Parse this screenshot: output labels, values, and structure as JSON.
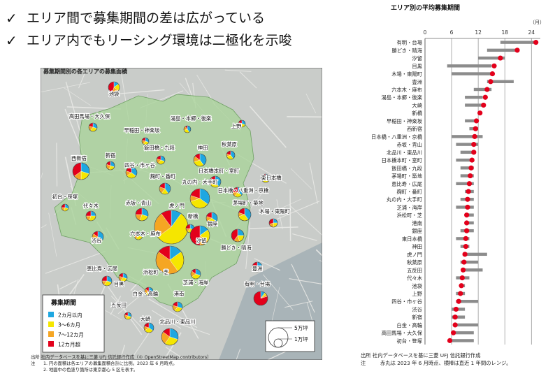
{
  "headlines": [
    {
      "mark": "✓",
      "text": "エリア間で募集期間の差は広がっている"
    },
    {
      "mark": "✓",
      "text": "エリア内でもリーシング環境は二極化を示唆"
    }
  ],
  "map": {
    "title": "募集期間別の各エリアの募集面積",
    "legend": {
      "title": "募集期間",
      "items": [
        {
          "label": "2カ月以内",
          "color": "#1ea7e1"
        },
        {
          "label": "3～6カ月",
          "color": "#f5e600"
        },
        {
          "label": "7～12カ月",
          "color": "#f5a623"
        },
        {
          "label": "12カ月超",
          "color": "#e3001b"
        }
      ]
    },
    "size_legend": {
      "large": "5万坪",
      "small": "1万坪"
    },
    "areas": [
      {
        "name": "池袋"
      },
      {
        "name": "高田馬場・大久保"
      },
      {
        "name": "湯島・本郷・後楽"
      },
      {
        "name": "早稲田・神楽坂"
      },
      {
        "name": "上野"
      },
      {
        "name": "飯田橋・九段"
      },
      {
        "name": "神田"
      },
      {
        "name": "秋葉原"
      },
      {
        "name": "西新宿"
      },
      {
        "name": "新宿"
      },
      {
        "name": "四谷・市ヶ谷"
      },
      {
        "name": "日本橋本町・室町"
      },
      {
        "name": "東日本橋"
      },
      {
        "name": "麹町・番町"
      },
      {
        "name": "丸の内・大手町"
      },
      {
        "name": "日本橋・八重洲・京橋"
      },
      {
        "name": "初台・笹塚"
      },
      {
        "name": "代々木"
      },
      {
        "name": "赤坂・青山"
      },
      {
        "name": "虎ノ門"
      },
      {
        "name": "茅場町・築地"
      },
      {
        "name": "木場・東陽町"
      },
      {
        "name": "新橋"
      },
      {
        "name": "銀座"
      },
      {
        "name": "六本木・麻布"
      },
      {
        "name": "汐留"
      },
      {
        "name": "渋谷"
      },
      {
        "name": "勝どき・晴海"
      },
      {
        "name": "恵比寿・広尾"
      },
      {
        "name": "浜松町・芝"
      },
      {
        "name": "豊洲"
      },
      {
        "name": "芝浦・海岸"
      },
      {
        "name": "目黒"
      },
      {
        "name": "有明・台場"
      },
      {
        "name": "白金・高輪"
      },
      {
        "name": "港南"
      },
      {
        "name": "五反田"
      },
      {
        "name": "大崎"
      },
      {
        "name": "北品川・東品川"
      }
    ],
    "source": "出所 社内データベースを基に三菱 UFJ 信託銀行作成（© OpenStreetMap contributors）",
    "notes": [
      {
        "label": "注",
        "text": "1. 円の面積は各エリアの募集面積合計に比例。2023 年 6 月時点。"
      },
      {
        "label": "",
        "text": "2. 地図中の色塗り箇所は東京都心 5 区を表す。"
      }
    ]
  },
  "chart_data": {
    "type": "dot-range",
    "title": "エリア別の平均募集期間",
    "unit_label": "（月）",
    "xlim": [
      0,
      26
    ],
    "xticks": [
      0,
      6,
      12,
      18,
      24
    ],
    "categories": [
      "有明・台場",
      "勝どき・晴海",
      "汐留",
      "目黒",
      "木場・東陽町",
      "豊洲",
      "六本木・麻布",
      "湯島・本郷・後楽",
      "大崎",
      "新橋",
      "早稲田・神楽坂",
      "西新宿",
      "日本橋・八重洲・京橋",
      "赤坂・青山",
      "北品川・東品川",
      "日本橋本町・室町",
      "飯田橋・九段",
      "茅場町・築地",
      "恵比寿・広尾",
      "麹町・番町",
      "丸の内・大手町",
      "芝浦・海岸",
      "浜松町・芝",
      "港南",
      "銀座",
      "東日本橋",
      "神田",
      "虎ノ門",
      "秋葉原",
      "五反田",
      "代々木",
      "池袋",
      "上野",
      "四谷・市ヶ谷",
      "渋谷",
      "新宿",
      "白金・高輪",
      "高田馬場・大久保",
      "初台・笹塚"
    ],
    "series": [
      {
        "name": "2023年6月時点",
        "values": [
          25.0,
          20.8,
          17.0,
          15.6,
          15.2,
          14.8,
          14.0,
          13.6,
          13.2,
          12.4,
          11.6,
          11.4,
          11.2,
          11.0,
          11.0,
          10.6,
          10.4,
          10.2,
          10.0,
          9.8,
          9.6,
          9.6,
          9.4,
          9.4,
          9.4,
          9.2,
          9.2,
          9.0,
          8.8,
          8.6,
          8.4,
          8.2,
          8.0,
          7.6,
          7.0,
          6.8,
          6.8,
          6.4,
          5.6
        ]
      },
      {
        "name": "直近1年間のレンジ",
        "low": [
          17.0,
          14.0,
          12.0,
          5.0,
          6.0,
          14.0,
          11.0,
          9.0,
          9.0,
          12.0,
          9.0,
          10.0,
          6.0,
          7.0,
          8.0,
          7.0,
          8.0,
          8.0,
          7.0,
          9.0,
          8.0,
          7.0,
          9.0,
          9.0,
          8.0,
          7.0,
          8.0,
          9.0,
          8.0,
          9.0,
          7.0,
          8.0,
          7.0,
          7.0,
          6.0,
          6.0,
          7.0,
          6.0,
          6.0
        ],
        "high": [
          25.0,
          21.0,
          18.0,
          15.0,
          15.0,
          20.0,
          15.0,
          13.0,
          13.0,
          12.5,
          12.0,
          12.0,
          13.0,
          12.0,
          11.0,
          11.0,
          11.0,
          11.0,
          11.0,
          11.0,
          11.0,
          11.0,
          11.0,
          11.0,
          11.0,
          10.0,
          10.0,
          14.0,
          12.0,
          13.0,
          10.0,
          9.0,
          9.0,
          12.0,
          9.0,
          9.0,
          12.0,
          11.0,
          11.0
        ]
      }
    ],
    "colors": {
      "dot": "#e3001b",
      "range": "#8c8c8c"
    },
    "source": "出所 社内データベースを基に三菱 UFJ 信託銀行作成",
    "note": {
      "label": "注",
      "text": "赤丸は 2023 年 6 月時点、横棒は直近 1 年間のレンジ。"
    }
  }
}
